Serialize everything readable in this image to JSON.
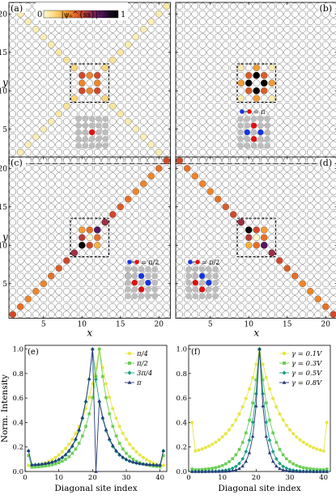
{
  "colorbar": {
    "min_label": "0",
    "max_label": "1",
    "label": "|ψₙ^{ss}|²"
  },
  "colors": {
    "scale": [
      "#fdf9d3",
      "#fbe08c",
      "#f7b241",
      "#ed7b26",
      "#cf4a2c",
      "#962a4d",
      "#5a1663",
      "#1b0a26",
      "#000000"
    ],
    "red_site": "#e01010",
    "blue_site": "#1535e0",
    "gray_site": "#bdbdbd",
    "chart_e": [
      "#e6e647",
      "#6bcf55",
      "#1aa080",
      "#263a7a"
    ],
    "chart_f": [
      "#e6e647",
      "#6bcf55",
      "#1aa080",
      "#263a7a"
    ]
  },
  "heatmaps": [
    {
      "label": "(a)",
      "show_y_label": true,
      "show_x_label": false,
      "inset_phase": "",
      "inset_type": "single",
      "inset_sites": [
        {
          "x": 2,
          "y": 2,
          "c": "red"
        }
      ]
    },
    {
      "label": "(b)",
      "show_y_label": false,
      "show_x_label": false,
      "inset_phase": "= π",
      "inset_type": "cross",
      "inset_sites": [
        {
          "x": 2,
          "y": 1,
          "c": "red"
        },
        {
          "x": 1,
          "y": 2,
          "c": "blue"
        },
        {
          "x": 3,
          "y": 2,
          "c": "blue"
        },
        {
          "x": 2,
          "y": 3,
          "c": "red"
        }
      ]
    },
    {
      "label": "(c)",
      "show_y_label": true,
      "show_x_label": true,
      "inset_phase": "= π/2",
      "inset_type": "cross",
      "inset_sites": [
        {
          "x": 2,
          "y": 1,
          "c": "blue"
        },
        {
          "x": 1,
          "y": 2,
          "c": "red"
        },
        {
          "x": 3,
          "y": 2,
          "c": "blue"
        },
        {
          "x": 2,
          "y": 3,
          "c": "red"
        }
      ]
    },
    {
      "label": "(d)",
      "show_y_label": false,
      "show_x_label": true,
      "inset_phase": "= π/2",
      "inset_type": "cross",
      "inset_sites": [
        {
          "x": 2,
          "y": 1,
          "c": "blue"
        },
        {
          "x": 1,
          "y": 2,
          "c": "red"
        },
        {
          "x": 3,
          "y": 2,
          "c": "blue"
        },
        {
          "x": 2,
          "y": 3,
          "c": "red"
        }
      ]
    }
  ],
  "axis_labels": {
    "x": "x",
    "y": "y"
  },
  "chart_data": [
    {
      "type": "heatmap",
      "panel": "(a)",
      "grid": {
        "x_range": [
          1,
          21
        ],
        "y_range": [
          1,
          21
        ],
        "x_ticks": [
          5,
          10,
          15,
          20
        ],
        "y_ticks": [
          5,
          10,
          15,
          20
        ]
      },
      "dashed_box": {
        "x": [
          9,
          13
        ],
        "y": [
          9,
          13
        ]
      },
      "cells": [
        {
          "x": 10,
          "y": 12,
          "v": 0.5
        },
        {
          "x": 12,
          "y": 12,
          "v": 0.5
        },
        {
          "x": 10,
          "y": 10,
          "v": 0.5
        },
        {
          "x": 12,
          "y": 10,
          "v": 0.5
        },
        {
          "x": 11,
          "y": 12,
          "v": 0.35
        },
        {
          "x": 11,
          "y": 10,
          "v": 0.35
        },
        {
          "x": 10,
          "y": 11,
          "v": 0.35
        },
        {
          "x": 12,
          "y": 11,
          "v": 0.35
        },
        {
          "x": 9,
          "y": 13,
          "v": 0.15
        },
        {
          "x": 13,
          "y": 13,
          "v": 0.15
        },
        {
          "x": 9,
          "y": 9,
          "v": 0.15
        },
        {
          "x": 13,
          "y": 9,
          "v": 0.15
        },
        {
          "x": 8,
          "y": 14,
          "v": 0.1
        },
        {
          "x": 14,
          "y": 14,
          "v": 0.1
        },
        {
          "x": 8,
          "y": 8,
          "v": 0.1
        },
        {
          "x": 14,
          "y": 8,
          "v": 0.1
        },
        {
          "x": 7,
          "y": 15,
          "v": 0.08
        },
        {
          "x": 15,
          "y": 15,
          "v": 0.08
        },
        {
          "x": 7,
          "y": 7,
          "v": 0.08
        },
        {
          "x": 15,
          "y": 7,
          "v": 0.08
        },
        {
          "x": 6,
          "y": 16,
          "v": 0.06
        },
        {
          "x": 16,
          "y": 16,
          "v": 0.06
        },
        {
          "x": 6,
          "y": 6,
          "v": 0.06
        },
        {
          "x": 16,
          "y": 6,
          "v": 0.06
        },
        {
          "x": 5,
          "y": 17,
          "v": 0.05
        },
        {
          "x": 17,
          "y": 17,
          "v": 0.05
        },
        {
          "x": 5,
          "y": 5,
          "v": 0.05
        },
        {
          "x": 17,
          "y": 5,
          "v": 0.05
        },
        {
          "x": 4,
          "y": 18,
          "v": 0.05
        },
        {
          "x": 18,
          "y": 18,
          "v": 0.05
        },
        {
          "x": 4,
          "y": 4,
          "v": 0.05
        },
        {
          "x": 18,
          "y": 4,
          "v": 0.05
        },
        {
          "x": 3,
          "y": 19,
          "v": 0.05
        },
        {
          "x": 19,
          "y": 19,
          "v": 0.05
        },
        {
          "x": 3,
          "y": 3,
          "v": 0.05
        },
        {
          "x": 19,
          "y": 3,
          "v": 0.05
        },
        {
          "x": 2,
          "y": 20,
          "v": 0.06
        },
        {
          "x": 20,
          "y": 20,
          "v": 0.06
        },
        {
          "x": 2,
          "y": 2,
          "v": 0.06
        },
        {
          "x": 20,
          "y": 2,
          "v": 0.06
        },
        {
          "x": 1,
          "y": 21,
          "v": 0.08
        },
        {
          "x": 21,
          "y": 21,
          "v": 0.08
        },
        {
          "x": 1,
          "y": 1,
          "v": 0.08
        },
        {
          "x": 21,
          "y": 1,
          "v": 0.08
        }
      ]
    },
    {
      "type": "heatmap",
      "panel": "(b)",
      "grid": {
        "x_range": [
          1,
          21
        ],
        "y_range": [
          1,
          21
        ],
        "x_ticks": [
          5,
          10,
          15,
          20
        ],
        "y_ticks": [
          5,
          10,
          15,
          20
        ]
      },
      "dashed_box": {
        "x": [
          9,
          13
        ],
        "y": [
          9,
          13
        ]
      },
      "cells": [
        {
          "x": 11,
          "y": 12,
          "v": 1.0
        },
        {
          "x": 10,
          "y": 11,
          "v": 1.0
        },
        {
          "x": 12,
          "y": 11,
          "v": 1.0
        },
        {
          "x": 11,
          "y": 10,
          "v": 1.0
        },
        {
          "x": 10,
          "y": 12,
          "v": 0.45
        },
        {
          "x": 12,
          "y": 12,
          "v": 0.45
        },
        {
          "x": 10,
          "y": 10,
          "v": 0.45
        },
        {
          "x": 12,
          "y": 10,
          "v": 0.45
        },
        {
          "x": 11,
          "y": 13,
          "v": 0.3
        },
        {
          "x": 11,
          "y": 9,
          "v": 0.3
        },
        {
          "x": 9,
          "y": 11,
          "v": 0.3
        },
        {
          "x": 13,
          "y": 11,
          "v": 0.3
        },
        {
          "x": 9,
          "y": 13,
          "v": 0.06
        },
        {
          "x": 13,
          "y": 13,
          "v": 0.06
        },
        {
          "x": 9,
          "y": 9,
          "v": 0.06
        },
        {
          "x": 13,
          "y": 9,
          "v": 0.06
        }
      ]
    },
    {
      "type": "heatmap",
      "panel": "(c)",
      "grid": {
        "x_range": [
          1,
          21
        ],
        "y_range": [
          1,
          21
        ],
        "x_ticks": [
          5,
          10,
          15,
          20
        ],
        "y_ticks": [
          5,
          10,
          15,
          20
        ]
      },
      "dashed_box": {
        "x": [
          9,
          13
        ],
        "y": [
          9,
          13
        ]
      },
      "cells": [
        {
          "x": 11,
          "y": 11,
          "v": 0.0
        },
        {
          "x": 10,
          "y": 10,
          "v": 1.0
        },
        {
          "x": 12,
          "y": 12,
          "v": 0.75
        },
        {
          "x": 11,
          "y": 10,
          "v": 0.5
        },
        {
          "x": 10,
          "y": 11,
          "v": 0.55
        },
        {
          "x": 12,
          "y": 11,
          "v": 0.4
        },
        {
          "x": 11,
          "y": 12,
          "v": 0.4
        },
        {
          "x": 10,
          "y": 12,
          "v": 0.3
        },
        {
          "x": 12,
          "y": 10,
          "v": 0.25
        },
        {
          "x": 13,
          "y": 13,
          "v": 0.6
        },
        {
          "x": 9,
          "y": 9,
          "v": 0.6
        },
        {
          "x": 14,
          "y": 14,
          "v": 0.5
        },
        {
          "x": 8,
          "y": 8,
          "v": 0.5
        },
        {
          "x": 15,
          "y": 15,
          "v": 0.45
        },
        {
          "x": 7,
          "y": 7,
          "v": 0.45
        },
        {
          "x": 16,
          "y": 16,
          "v": 0.4
        },
        {
          "x": 6,
          "y": 6,
          "v": 0.4
        },
        {
          "x": 17,
          "y": 17,
          "v": 0.35
        },
        {
          "x": 5,
          "y": 5,
          "v": 0.35
        },
        {
          "x": 18,
          "y": 18,
          "v": 0.35
        },
        {
          "x": 4,
          "y": 4,
          "v": 0.35
        },
        {
          "x": 19,
          "y": 19,
          "v": 0.35
        },
        {
          "x": 3,
          "y": 3,
          "v": 0.35
        },
        {
          "x": 20,
          "y": 20,
          "v": 0.4
        },
        {
          "x": 2,
          "y": 2,
          "v": 0.4
        },
        {
          "x": 21,
          "y": 21,
          "v": 0.5
        },
        {
          "x": 1,
          "y": 1,
          "v": 0.5
        }
      ]
    },
    {
      "type": "heatmap",
      "panel": "(d)",
      "grid": {
        "x_range": [
          1,
          21
        ],
        "y_range": [
          1,
          21
        ],
        "x_ticks": [
          5,
          10,
          15,
          20
        ],
        "y_ticks": [
          5,
          10,
          15,
          20
        ]
      },
      "dashed_box": {
        "x": [
          9,
          13
        ],
        "y": [
          9,
          13
        ]
      },
      "cells": [
        {
          "x": 11,
          "y": 11,
          "v": 0.0
        },
        {
          "x": 10,
          "y": 12,
          "v": 1.0
        },
        {
          "x": 12,
          "y": 10,
          "v": 0.75
        },
        {
          "x": 11,
          "y": 12,
          "v": 0.5
        },
        {
          "x": 10,
          "y": 11,
          "v": 0.55
        },
        {
          "x": 12,
          "y": 11,
          "v": 0.4
        },
        {
          "x": 11,
          "y": 10,
          "v": 0.4
        },
        {
          "x": 12,
          "y": 12,
          "v": 0.3
        },
        {
          "x": 10,
          "y": 10,
          "v": 0.25
        },
        {
          "x": 9,
          "y": 13,
          "v": 0.6
        },
        {
          "x": 13,
          "y": 9,
          "v": 0.6
        },
        {
          "x": 8,
          "y": 14,
          "v": 0.5
        },
        {
          "x": 14,
          "y": 8,
          "v": 0.5
        },
        {
          "x": 7,
          "y": 15,
          "v": 0.45
        },
        {
          "x": 15,
          "y": 7,
          "v": 0.45
        },
        {
          "x": 6,
          "y": 16,
          "v": 0.4
        },
        {
          "x": 16,
          "y": 6,
          "v": 0.4
        },
        {
          "x": 5,
          "y": 17,
          "v": 0.35
        },
        {
          "x": 17,
          "y": 5,
          "v": 0.35
        },
        {
          "x": 4,
          "y": 18,
          "v": 0.35
        },
        {
          "x": 18,
          "y": 4,
          "v": 0.35
        },
        {
          "x": 3,
          "y": 19,
          "v": 0.35
        },
        {
          "x": 19,
          "y": 3,
          "v": 0.35
        },
        {
          "x": 2,
          "y": 20,
          "v": 0.4
        },
        {
          "x": 20,
          "y": 2,
          "v": 0.4
        },
        {
          "x": 1,
          "y": 21,
          "v": 0.5
        },
        {
          "x": 21,
          "y": 1,
          "v": 0.5
        }
      ]
    },
    {
      "type": "line",
      "panel": "(e)",
      "xlabel": "Diagonal site index",
      "ylabel": "Norm. Intensity",
      "xlim": [
        0,
        42
      ],
      "ylim": [
        0,
        1.03
      ],
      "x_ticks": [
        0,
        10,
        20,
        30,
        40
      ],
      "y_ticks": [
        0.0,
        0.2,
        0.4,
        0.6,
        0.8,
        1.0
      ],
      "legend": "top-right",
      "series": [
        {
          "name": "π/4",
          "marker": "circle",
          "profile": {
            "peak": 22,
            "edge": 0.05,
            "base": 0.0,
            "decay": 6.0,
            "dip": 0
          }
        },
        {
          "name": "π/2",
          "marker": "square",
          "profile": {
            "peak": 22,
            "edge": 0.1,
            "base": 0.03,
            "decay": 3.8,
            "dip": 0
          }
        },
        {
          "name": "3π/4",
          "marker": "diamond",
          "profile": {
            "peak": 20,
            "edge": 0.12,
            "base": 0.05,
            "decay": 3.3,
            "dip": 0
          }
        },
        {
          "name": "π",
          "marker": "triangle",
          "profile": {
            "peak": 20,
            "edge": 0.12,
            "base": 0.05,
            "decay": 3.4,
            "dip": 21
          }
        }
      ]
    },
    {
      "type": "line",
      "panel": "(f)",
      "xlabel": "Diagonal site index",
      "ylabel": "",
      "xlim": [
        0,
        42
      ],
      "ylim": [
        0,
        1.03
      ],
      "x_ticks": [
        0,
        10,
        20,
        30,
        40
      ],
      "y_ticks": [
        0.0,
        0.2,
        0.4,
        0.6,
        0.8,
        1.0
      ],
      "legend": "top-right",
      "series": [
        {
          "name": "γ = 0.1V",
          "marker": "circle",
          "profile": {
            "peak": 21,
            "edge": 0.28,
            "base": 0.12,
            "decay": 6.5,
            "dip": 0
          }
        },
        {
          "name": "γ = 0.3V",
          "marker": "square",
          "profile": {
            "peak": 21,
            "edge": 0.01,
            "base": 0.01,
            "decay": 3.4,
            "dip": 0
          }
        },
        {
          "name": "γ = 0.5V",
          "marker": "diamond",
          "profile": {
            "peak": 21,
            "edge": 0.0,
            "base": 0.0,
            "decay": 2.2,
            "dip": 0
          }
        },
        {
          "name": "γ = 0.8V",
          "marker": "triangle",
          "profile": {
            "peak": 21,
            "edge": 0.0,
            "base": 0.0,
            "decay": 1.6,
            "dip": 0
          }
        }
      ]
    }
  ]
}
